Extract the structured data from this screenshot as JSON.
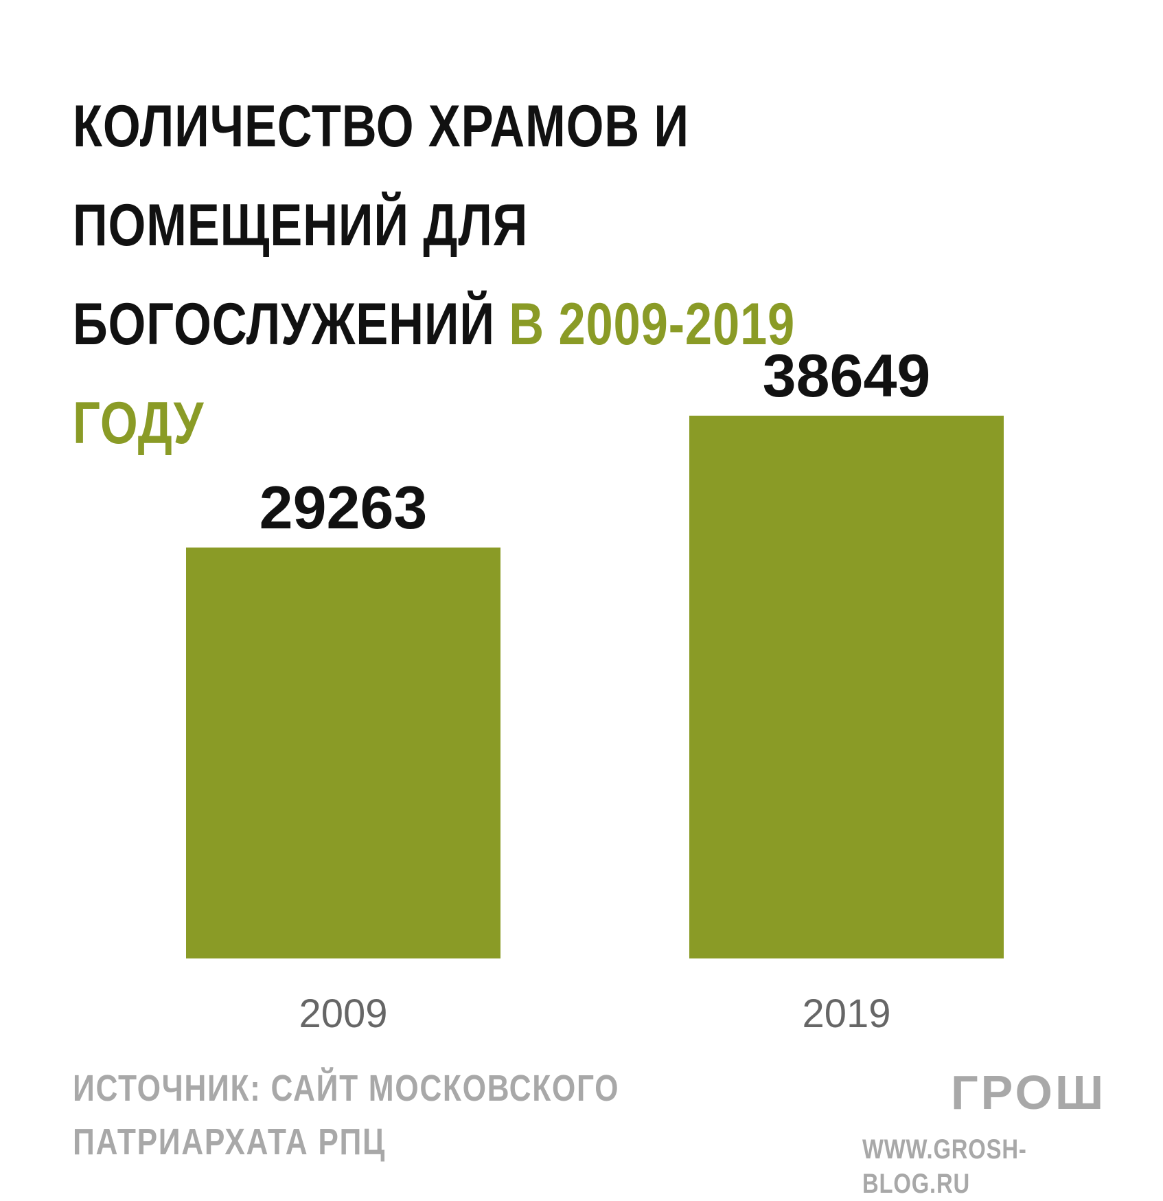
{
  "chart_data": {
    "type": "bar",
    "title": "КОЛИЧЕСТВО ХРАМОВ И ПОМЕЩЕНИЙ ДЛЯ БОГОСЛУЖЕНИЙ В 2009-2019 ГОДУ",
    "title_main": "КОЛИЧЕСТВО ХРАМОВ И ПОМЕЩЕНИЙ ДЛЯ БОГОСЛУЖЕНИЙ",
    "title_accent": "В 2009-2019 ГОДУ",
    "categories": [
      "2009",
      "2019"
    ],
    "values": [
      29263,
      38649
    ],
    "xlabel": "",
    "ylabel": "",
    "ylim": [
      0,
      38649
    ],
    "grid": false,
    "legend": "none",
    "colors": {
      "bar": "#8a9b26",
      "accent": "#8a9b26",
      "label": "#111111",
      "tick": "#666666"
    }
  },
  "footer": {
    "source_line1": "ИСТОЧНИК: САЙТ МОСКОВСКОГО",
    "source_line2": "ПАТРИАРХАТА РПЦ",
    "logo": "ГРОШ",
    "site": "WWW.GROSH-BLOG.RU"
  }
}
